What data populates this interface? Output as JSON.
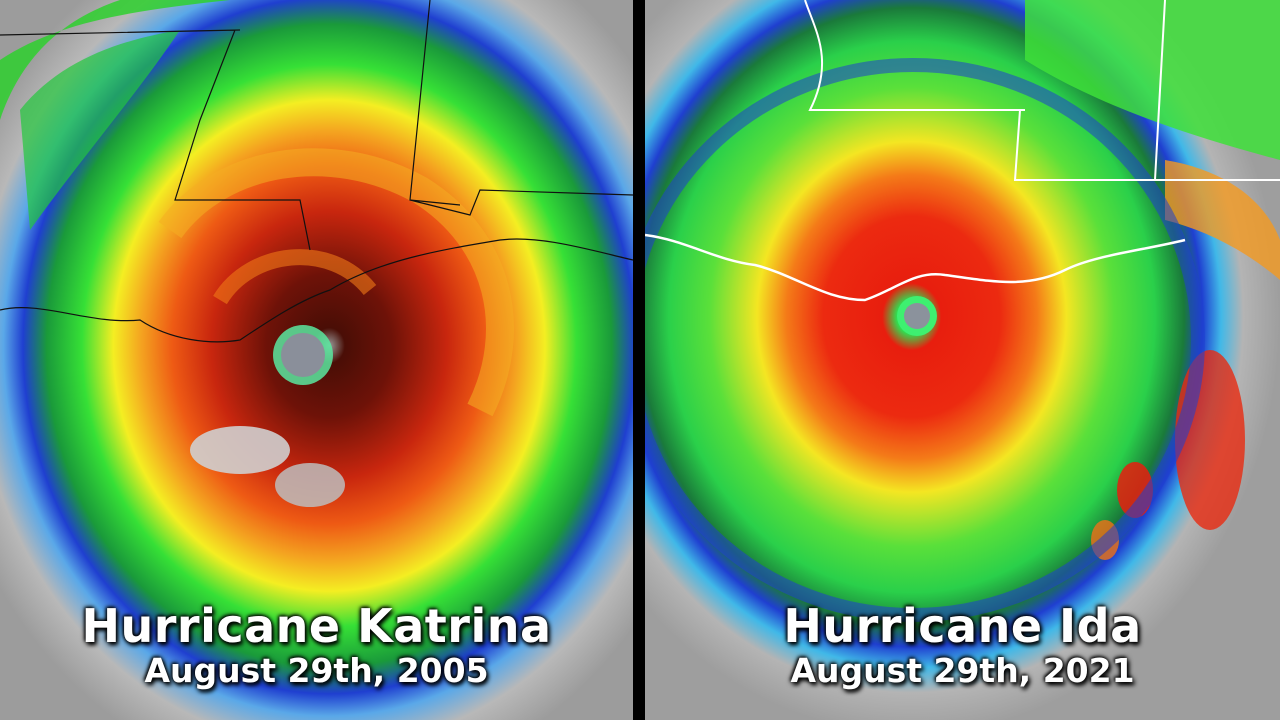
{
  "left_panel": {
    "title": "Hurricane Katrina",
    "date": "August 29th,  2005"
  },
  "right_panel": {
    "title": "Hurricane Ida",
    "date": "August 29th,  2021"
  },
  "colors": {
    "background_gray": "#a9a9a9",
    "blue": "#1f3fd0",
    "cyan": "#28c8e8",
    "green": "#2ee02e",
    "yellow": "#f4f020",
    "orange": "#f49a20",
    "red": "#e81e0e",
    "dark_red": "#6e1208",
    "divider": "#000000"
  }
}
